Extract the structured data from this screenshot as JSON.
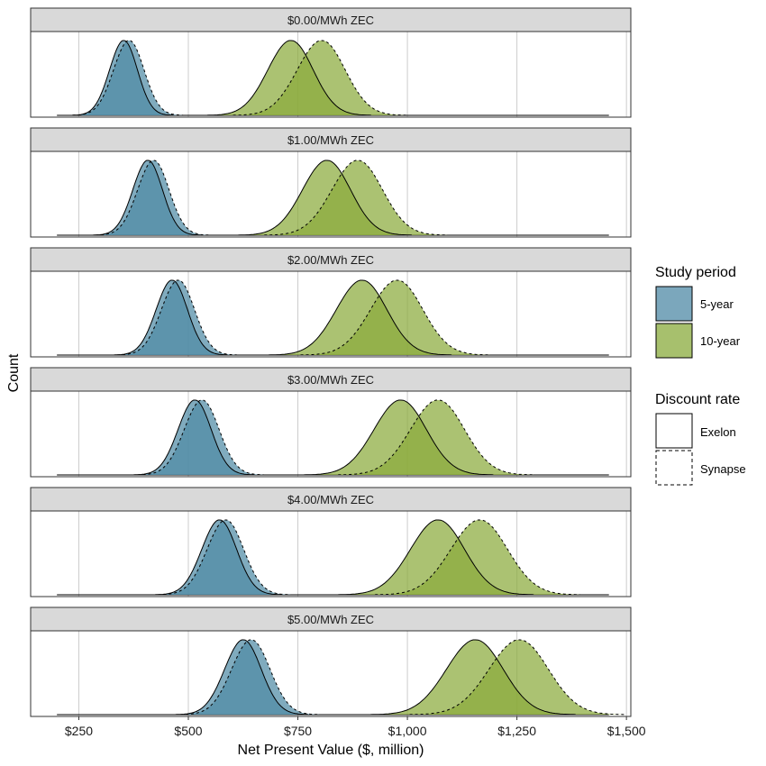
{
  "chart_data": {
    "type": "area",
    "xlabel": "Net Present Value ($, million)",
    "ylabel": "Count",
    "xlim": [
      140,
      1510
    ],
    "x_ticks": [
      250,
      500,
      750,
      1000,
      1250,
      1500
    ],
    "x_tick_labels": [
      "$250",
      "$500",
      "$750",
      "$1,000",
      "$1,250",
      "$1,500"
    ],
    "grid": true,
    "legend_position": "right",
    "colors": {
      "5-year": "#4f8aa5",
      "10-year": "#8aab3c"
    },
    "legend": {
      "study_period": {
        "title": "Study period",
        "items": [
          "5-year",
          "10-year"
        ]
      },
      "discount_rate": {
        "title": "Discount rate",
        "items": [
          "Exelon",
          "Synapse"
        ]
      }
    },
    "panels": [
      {
        "label": "$0.00/MWh ZEC",
        "series": [
          {
            "study_period": "5-year",
            "discount_rate": "Exelon",
            "peak": 350,
            "sd": 32
          },
          {
            "study_period": "5-year",
            "discount_rate": "Synapse",
            "peak": 362,
            "sd": 35
          },
          {
            "study_period": "10-year",
            "discount_rate": "Exelon",
            "peak": 730,
            "sd": 52
          },
          {
            "study_period": "10-year",
            "discount_rate": "Synapse",
            "peak": 800,
            "sd": 55
          }
        ]
      },
      {
        "label": "$1.00/MWh ZEC",
        "series": [
          {
            "study_period": "5-year",
            "discount_rate": "Exelon",
            "peak": 405,
            "sd": 34
          },
          {
            "study_period": "5-year",
            "discount_rate": "Synapse",
            "peak": 418,
            "sd": 36
          },
          {
            "study_period": "10-year",
            "discount_rate": "Exelon",
            "peak": 812,
            "sd": 55
          },
          {
            "study_period": "10-year",
            "discount_rate": "Synapse",
            "peak": 882,
            "sd": 58
          }
        ]
      },
      {
        "label": "$2.00/MWh ZEC",
        "series": [
          {
            "study_period": "5-year",
            "discount_rate": "Exelon",
            "peak": 460,
            "sd": 36
          },
          {
            "study_period": "5-year",
            "discount_rate": "Synapse",
            "peak": 474,
            "sd": 38
          },
          {
            "study_period": "10-year",
            "discount_rate": "Exelon",
            "peak": 892,
            "sd": 58
          },
          {
            "study_period": "10-year",
            "discount_rate": "Synapse",
            "peak": 972,
            "sd": 60
          }
        ]
      },
      {
        "label": "$3.00/MWh ZEC",
        "series": [
          {
            "study_period": "5-year",
            "discount_rate": "Exelon",
            "peak": 512,
            "sd": 38
          },
          {
            "study_period": "5-year",
            "discount_rate": "Synapse",
            "peak": 528,
            "sd": 40
          },
          {
            "study_period": "10-year",
            "discount_rate": "Exelon",
            "peak": 980,
            "sd": 60
          },
          {
            "study_period": "10-year",
            "discount_rate": "Synapse",
            "peak": 1065,
            "sd": 62
          }
        ]
      },
      {
        "label": "$4.00/MWh ZEC",
        "series": [
          {
            "study_period": "5-year",
            "discount_rate": "Exelon",
            "peak": 568,
            "sd": 40
          },
          {
            "study_period": "5-year",
            "discount_rate": "Synapse",
            "peak": 582,
            "sd": 42
          },
          {
            "study_period": "10-year",
            "discount_rate": "Exelon",
            "peak": 1065,
            "sd": 62
          },
          {
            "study_period": "10-year",
            "discount_rate": "Synapse",
            "peak": 1160,
            "sd": 65
          }
        ]
      },
      {
        "label": "$5.00/MWh ZEC",
        "series": [
          {
            "study_period": "5-year",
            "discount_rate": "Exelon",
            "peak": 622,
            "sd": 42
          },
          {
            "study_period": "5-year",
            "discount_rate": "Synapse",
            "peak": 640,
            "sd": 44
          },
          {
            "study_period": "10-year",
            "discount_rate": "Exelon",
            "peak": 1150,
            "sd": 65
          },
          {
            "study_period": "10-year",
            "discount_rate": "Synapse",
            "peak": 1250,
            "sd": 68
          }
        ]
      }
    ]
  }
}
